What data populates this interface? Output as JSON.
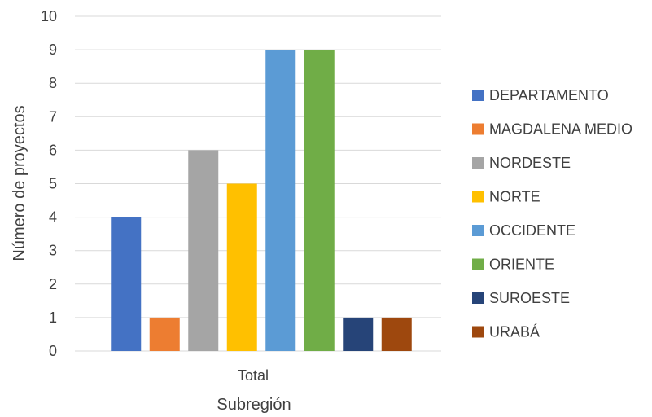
{
  "chart_data": {
    "type": "bar",
    "categories": [
      "Total"
    ],
    "xlabel": "Subregión",
    "ylabel": "Número de proyectos",
    "ylim": [
      0,
      10
    ],
    "yticks": [
      0,
      1,
      2,
      3,
      4,
      5,
      6,
      7,
      8,
      9,
      10
    ],
    "grid": true,
    "legend_position": "right",
    "series": [
      {
        "name": "DEPARTAMENTO",
        "values": [
          4
        ],
        "color": "#4472C4"
      },
      {
        "name": "MAGDALENA MEDIO",
        "values": [
          1
        ],
        "color": "#ED7D31"
      },
      {
        "name": "NORDESTE",
        "values": [
          6
        ],
        "color": "#A5A5A5"
      },
      {
        "name": "NORTE",
        "values": [
          5
        ],
        "color": "#FFC000"
      },
      {
        "name": "OCCIDENTE",
        "values": [
          9
        ],
        "color": "#5B9BD5"
      },
      {
        "name": "ORIENTE",
        "values": [
          9
        ],
        "color": "#70AD47"
      },
      {
        "name": "SUROESTE",
        "values": [
          1
        ],
        "color": "#264478"
      },
      {
        "name": "URABÁ",
        "values": [
          1
        ],
        "color": "#9E480E"
      }
    ]
  }
}
